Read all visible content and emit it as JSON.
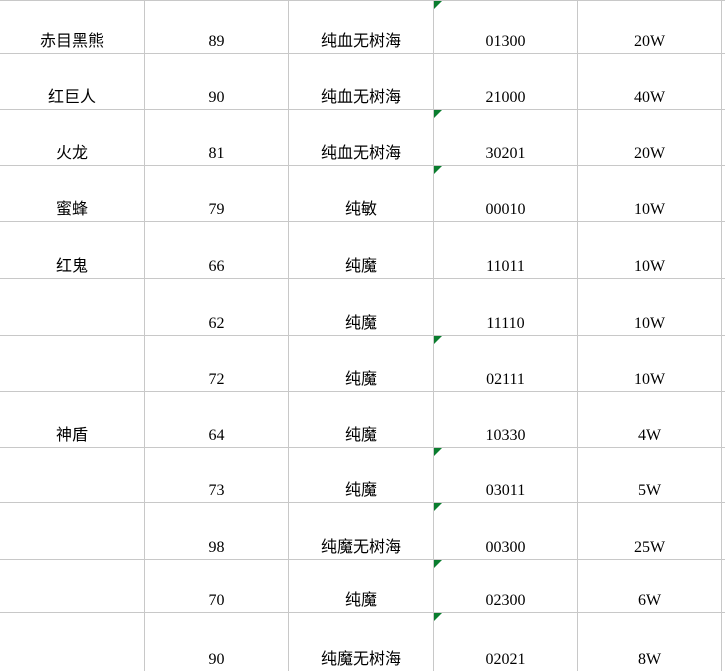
{
  "app": {
    "description": "spreadsheet grid without visible headers, bottom-aligned centered cells"
  },
  "colors": {
    "background": "#ffffff",
    "gridline": "#c8c8c8",
    "text": "#000000",
    "text_number_indicator_green": "#0a7d2e"
  },
  "columns": [
    {
      "key": "name"
    },
    {
      "key": "level"
    },
    {
      "key": "type"
    },
    {
      "key": "stats"
    },
    {
      "key": "price"
    }
  ],
  "rows": [
    {
      "name": "赤目黑熊",
      "level": "89",
      "type": "纯血无树海",
      "stats": "01300",
      "price": "20W",
      "stats_indicator": true
    },
    {
      "name": "红巨人",
      "level": "90",
      "type": "纯血无树海",
      "stats": "21000",
      "price": "40W",
      "stats_indicator": false
    },
    {
      "name": "火龙",
      "level": "81",
      "type": "纯血无树海",
      "stats": "30201",
      "price": "20W",
      "stats_indicator": true
    },
    {
      "name": "蜜蜂",
      "level": "79",
      "type": "纯敏",
      "stats": "00010",
      "price": "10W",
      "stats_indicator": true
    },
    {
      "name": "红鬼",
      "level": "66",
      "type": "纯魔",
      "stats": "11011",
      "price": "10W",
      "stats_indicator": false
    },
    {
      "name": "",
      "level": "62",
      "type": "纯魔",
      "stats": "11110",
      "price": "10W",
      "stats_indicator": false
    },
    {
      "name": "",
      "level": "72",
      "type": "纯魔",
      "stats": "02111",
      "price": "10W",
      "stats_indicator": true
    },
    {
      "name": "神盾",
      "level": "64",
      "type": "纯魔",
      "stats": "10330",
      "price": "4W",
      "stats_indicator": false
    },
    {
      "name": "",
      "level": "73",
      "type": "纯魔",
      "stats": "03011",
      "price": "5W",
      "stats_indicator": true
    },
    {
      "name": "",
      "level": "98",
      "type": "纯魔无树海",
      "stats": "00300",
      "price": "25W",
      "stats_indicator": true
    },
    {
      "name": "",
      "level": "70",
      "type": "纯魔",
      "stats": "02300",
      "price": "6W",
      "stats_indicator": true
    },
    {
      "name": "",
      "level": "90",
      "type": "纯魔无树海",
      "stats": "02021",
      "price": "8W",
      "stats_indicator": true
    }
  ]
}
